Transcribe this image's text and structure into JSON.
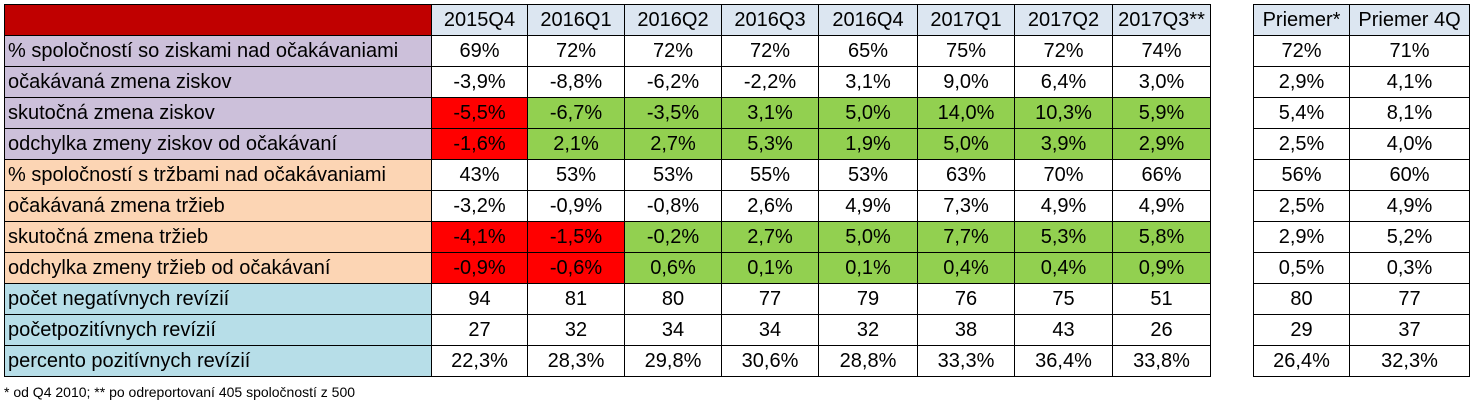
{
  "headers": [
    "2015Q4",
    "2016Q1",
    "2016Q2",
    "2016Q3",
    "2016Q4",
    "2017Q1",
    "2017Q2",
    "2017Q3**"
  ],
  "avg_headers": [
    "Priemer*",
    "Priemer 4Q"
  ],
  "rows": [
    {
      "label": "% spoločností so ziskami nad očakávaniami",
      "group": "purple",
      "values": [
        "69%",
        "72%",
        "72%",
        "72%",
        "65%",
        "75%",
        "72%",
        "74%"
      ],
      "colors": [
        "",
        "",
        "",
        "",
        "",
        "",
        "",
        ""
      ],
      "avg": [
        "72%",
        "71%"
      ]
    },
    {
      "label": "očakávaná zmena ziskov",
      "group": "purple",
      "values": [
        "-3,9%",
        "-8,8%",
        "-6,2%",
        "-2,2%",
        "3,1%",
        "9,0%",
        "6,4%",
        "3,0%"
      ],
      "colors": [
        "",
        "",
        "",
        "",
        "",
        "",
        "",
        ""
      ],
      "avg": [
        "2,9%",
        "4,1%"
      ]
    },
    {
      "label": "skutočná zmena ziskov",
      "group": "purple",
      "values": [
        "-5,5%",
        "-6,7%",
        "-3,5%",
        "3,1%",
        "5,0%",
        "14,0%",
        "10,3%",
        "5,9%"
      ],
      "colors": [
        "red",
        "green",
        "green",
        "green",
        "green",
        "green",
        "green",
        "green"
      ],
      "avg": [
        "5,4%",
        "8,1%"
      ]
    },
    {
      "label": "odchylka zmeny ziskov od očakávaní",
      "group": "purple",
      "values": [
        "-1,6%",
        "2,1%",
        "2,7%",
        "5,3%",
        "1,9%",
        "5,0%",
        "3,9%",
        "2,9%"
      ],
      "colors": [
        "red",
        "green",
        "green",
        "green",
        "green",
        "green",
        "green",
        "green"
      ],
      "avg": [
        "2,5%",
        "4,0%"
      ]
    },
    {
      "label": "% spoločností s tržbami nad očakávaniami",
      "group": "peach",
      "values": [
        "43%",
        "53%",
        "53%",
        "55%",
        "53%",
        "63%",
        "70%",
        "66%"
      ],
      "colors": [
        "",
        "",
        "",
        "",
        "",
        "",
        "",
        ""
      ],
      "avg": [
        "56%",
        "60%"
      ]
    },
    {
      "label": "očakávaná zmena tržieb",
      "group": "peach",
      "values": [
        "-3,2%",
        "-0,9%",
        "-0,8%",
        "2,6%",
        "4,9%",
        "7,3%",
        "4,9%",
        "4,9%"
      ],
      "colors": [
        "",
        "",
        "",
        "",
        "",
        "",
        "",
        ""
      ],
      "avg": [
        "2,5%",
        "4,9%"
      ]
    },
    {
      "label": "skutočná zmena tržieb",
      "group": "peach",
      "values": [
        "-4,1%",
        "-1,5%",
        "-0,2%",
        "2,7%",
        "5,0%",
        "7,7%",
        "5,3%",
        "5,8%"
      ],
      "colors": [
        "red",
        "red",
        "green",
        "green",
        "green",
        "green",
        "green",
        "green"
      ],
      "avg": [
        "2,9%",
        "5,2%"
      ]
    },
    {
      "label": "odchylka zmeny tržieb od očakávaní",
      "group": "peach",
      "values": [
        "-0,9%",
        "-0,6%",
        "0,6%",
        "0,1%",
        "0,1%",
        "0,4%",
        "0,4%",
        "0,9%"
      ],
      "colors": [
        "red",
        "red",
        "green",
        "green",
        "green",
        "green",
        "green",
        "green"
      ],
      "avg": [
        "0,5%",
        "0,3%"
      ]
    },
    {
      "label": "počet negatívnych revízií",
      "group": "blue",
      "values": [
        "94",
        "81",
        "80",
        "77",
        "79",
        "76",
        "75",
        "51"
      ],
      "colors": [
        "",
        "",
        "",
        "",
        "",
        "",
        "",
        ""
      ],
      "avg": [
        "80",
        "77"
      ]
    },
    {
      "label": "početpozitívnych revízií",
      "group": "blue",
      "values": [
        "27",
        "32",
        "34",
        "34",
        "32",
        "38",
        "43",
        "26"
      ],
      "colors": [
        "",
        "",
        "",
        "",
        "",
        "",
        "",
        ""
      ],
      "avg": [
        "29",
        "37"
      ]
    },
    {
      "label": "percento pozitívnych revízií",
      "group": "blue",
      "values": [
        "22,3%",
        "28,3%",
        "29,8%",
        "30,6%",
        "28,8%",
        "33,3%",
        "36,4%",
        "33,8%"
      ],
      "colors": [
        "",
        "",
        "",
        "",
        "",
        "",
        "",
        ""
      ],
      "avg": [
        "26,4%",
        "32,3%"
      ]
    }
  ],
  "footnote": "* od Q4 2010;  ** po odreportovaní 405 spoločností z 500",
  "colors": {
    "corner": "#c00000",
    "header": "#dce6f1",
    "purple": "#ccc0da",
    "peach": "#fcd5b4",
    "blue": "#b7dee8",
    "red": "#ff0000",
    "green": "#92d050"
  }
}
